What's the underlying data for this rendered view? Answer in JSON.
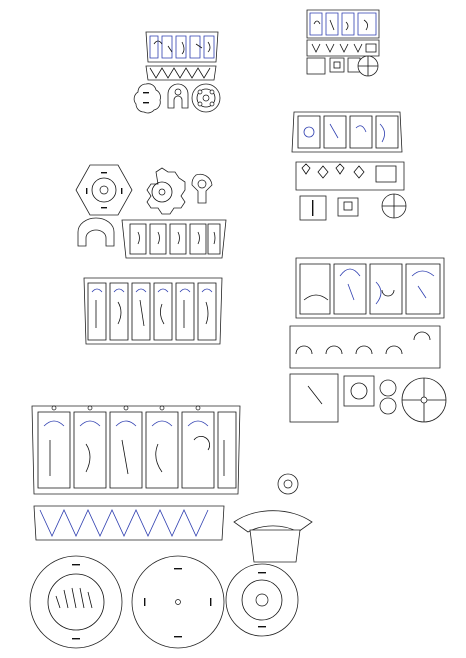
{
  "colors": {
    "background": "#ffffff",
    "cut_line": "#222222",
    "engrave_line": "#2f3fb0"
  },
  "groups": [
    {
      "name": "kit-small-top-center",
      "parts": [
        "panel-strip",
        "zigzag-band",
        "flower-disc",
        "flower-disc",
        "hook-connector"
      ]
    },
    {
      "name": "kit-top-right",
      "parts": [
        "panel-strip",
        "tab-row",
        "square-tabs",
        "round-cap"
      ]
    },
    {
      "name": "kit-middle-left",
      "parts": [
        "hex-ring",
        "gear-ring",
        "hook-connector",
        "panel-strip"
      ]
    },
    {
      "name": "kit-middle-left-lower",
      "parts": [
        "panel-strip"
      ]
    },
    {
      "name": "kit-right-middle",
      "parts": [
        "panel-strip",
        "tab-row",
        "square-tabs"
      ]
    },
    {
      "name": "kit-right-lower",
      "parts": [
        "panel-strip",
        "arch-row",
        "square-plate",
        "round-cap"
      ]
    },
    {
      "name": "kit-large-bottom-left",
      "parts": [
        "panel-strip",
        "zigzag-band",
        "flower-disc",
        "flower-disc",
        "flower-disc",
        "hook-connector"
      ]
    }
  ]
}
